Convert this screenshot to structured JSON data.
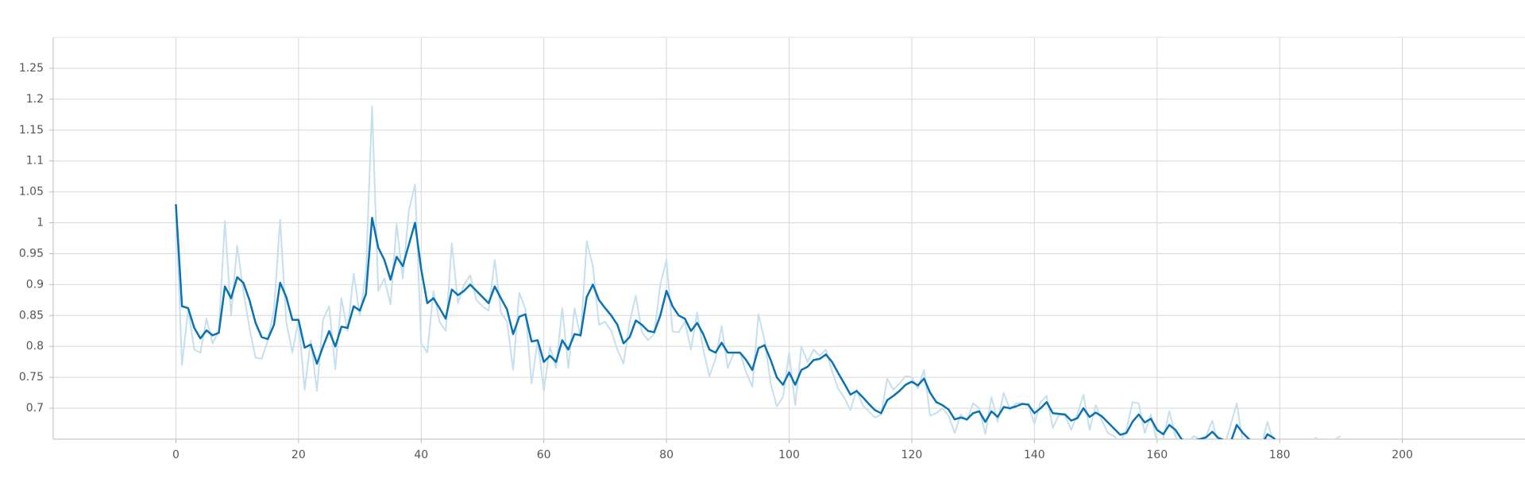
{
  "chart_data": {
    "type": "line",
    "x": [
      0,
      1,
      2,
      3,
      4,
      5,
      6,
      7,
      8,
      9,
      10,
      11,
      12,
      13,
      14,
      15,
      16,
      17,
      18,
      19,
      20,
      21,
      22,
      23,
      24,
      25,
      26,
      27,
      28,
      29,
      30,
      31,
      32,
      33,
      34,
      35,
      36,
      37,
      38,
      39,
      40,
      41,
      42,
      43,
      44,
      45,
      46,
      47,
      48,
      49,
      50,
      51,
      52,
      53,
      54,
      55,
      56,
      57,
      58,
      59,
      60,
      61,
      62,
      63,
      64,
      65,
      66,
      67,
      68,
      69,
      70,
      71,
      72,
      73,
      74,
      75,
      76,
      77,
      78,
      79,
      80,
      81,
      82,
      83,
      84,
      85,
      86,
      87,
      88,
      89,
      90,
      91,
      92,
      93,
      94,
      95,
      96,
      97,
      98,
      99,
      100,
      101,
      102,
      103,
      104,
      105,
      106,
      107,
      108,
      109,
      110,
      111,
      112,
      113,
      114,
      115,
      116,
      117,
      118,
      119,
      120,
      121,
      122,
      123,
      124,
      125,
      126,
      127,
      128,
      129,
      130,
      131,
      132,
      133,
      134,
      135,
      136,
      137,
      138,
      139,
      140,
      141,
      142,
      143,
      144,
      145,
      146,
      147,
      148,
      149,
      150,
      151,
      152,
      153,
      154,
      155,
      156,
      157,
      158,
      159,
      160,
      161,
      162,
      163,
      164,
      165,
      166,
      167,
      168,
      169,
      170,
      171,
      172,
      173,
      174,
      175,
      176,
      177,
      178,
      179,
      180,
      181,
      182,
      183,
      184,
      185,
      186,
      187,
      188,
      189,
      190
    ],
    "series": [
      {
        "color": "#c5dfee",
        "values": [
          1.03,
          0.77,
          0.86,
          0.795,
          0.79,
          0.845,
          0.805,
          0.825,
          1.003,
          0.85,
          0.963,
          0.89,
          0.83,
          0.782,
          0.78,
          0.81,
          0.86,
          1.005,
          0.84,
          0.79,
          0.843,
          0.73,
          0.81,
          0.728,
          0.843,
          0.865,
          0.763,
          0.878,
          0.825,
          0.918,
          0.85,
          0.92,
          1.188,
          0.89,
          0.91,
          0.868,
          0.998,
          0.91,
          1.02,
          1.062,
          0.805,
          0.79,
          0.89,
          0.84,
          0.825,
          0.967,
          0.87,
          0.9,
          0.915,
          0.875,
          0.865,
          0.858,
          0.94,
          0.855,
          0.84,
          0.762,
          0.887,
          0.86,
          0.74,
          0.81,
          0.728,
          0.8,
          0.765,
          0.862,
          0.765,
          0.862,
          0.815,
          0.97,
          0.93,
          0.835,
          0.84,
          0.825,
          0.795,
          0.772,
          0.84,
          0.882,
          0.823,
          0.81,
          0.82,
          0.9,
          0.94,
          0.824,
          0.823,
          0.84,
          0.795,
          0.855,
          0.795,
          0.752,
          0.78,
          0.833,
          0.765,
          0.79,
          0.79,
          0.758,
          0.735,
          0.852,
          0.81,
          0.74,
          0.703,
          0.718,
          0.79,
          0.705,
          0.8,
          0.775,
          0.795,
          0.785,
          0.795,
          0.76,
          0.732,
          0.717,
          0.697,
          0.73,
          0.705,
          0.695,
          0.685,
          0.69,
          0.748,
          0.73,
          0.74,
          0.752,
          0.75,
          0.732,
          0.762,
          0.688,
          0.692,
          0.7,
          0.688,
          0.66,
          0.69,
          0.68,
          0.708,
          0.7,
          0.658,
          0.718,
          0.678,
          0.725,
          0.698,
          0.708,
          0.708,
          0.705,
          0.675,
          0.71,
          0.72,
          0.668,
          0.69,
          0.688,
          0.665,
          0.69,
          0.722,
          0.665,
          0.705,
          0.68,
          0.66,
          0.655,
          0.645,
          0.665,
          0.71,
          0.708,
          0.66,
          0.69,
          0.645,
          0.65,
          0.695,
          0.655,
          0.635,
          0.645,
          0.655,
          0.65,
          0.655,
          0.68,
          0.64,
          0.64,
          0.673,
          0.708,
          0.645,
          0.64,
          0.635,
          0.64,
          0.678,
          0.645,
          0.63,
          0.63,
          0.62,
          0.625,
          0.63,
          0.648,
          0.652,
          0.64,
          0.645,
          0.65,
          0.655
        ]
      },
      {
        "color": "#0a72b0",
        "values": [
          1.03,
          0.865,
          0.862,
          0.83,
          0.813,
          0.826,
          0.818,
          0.822,
          0.897,
          0.878,
          0.912,
          0.903,
          0.875,
          0.838,
          0.815,
          0.812,
          0.835,
          0.903,
          0.88,
          0.843,
          0.843,
          0.798,
          0.803,
          0.772,
          0.8,
          0.825,
          0.8,
          0.832,
          0.83,
          0.865,
          0.858,
          0.885,
          1.008,
          0.96,
          0.94,
          0.908,
          0.945,
          0.93,
          0.965,
          1.0,
          0.925,
          0.87,
          0.878,
          0.862,
          0.845,
          0.892,
          0.883,
          0.89,
          0.9,
          0.89,
          0.88,
          0.87,
          0.897,
          0.878,
          0.86,
          0.82,
          0.848,
          0.852,
          0.808,
          0.81,
          0.775,
          0.785,
          0.775,
          0.81,
          0.795,
          0.82,
          0.818,
          0.88,
          0.9,
          0.875,
          0.862,
          0.85,
          0.835,
          0.805,
          0.815,
          0.842,
          0.835,
          0.825,
          0.823,
          0.85,
          0.89,
          0.865,
          0.85,
          0.845,
          0.825,
          0.838,
          0.82,
          0.795,
          0.79,
          0.806,
          0.79,
          0.79,
          0.79,
          0.778,
          0.762,
          0.797,
          0.802,
          0.778,
          0.75,
          0.738,
          0.758,
          0.738,
          0.762,
          0.767,
          0.778,
          0.78,
          0.787,
          0.775,
          0.757,
          0.74,
          0.722,
          0.728,
          0.718,
          0.707,
          0.697,
          0.692,
          0.713,
          0.72,
          0.728,
          0.738,
          0.743,
          0.737,
          0.748,
          0.725,
          0.71,
          0.705,
          0.698,
          0.682,
          0.685,
          0.682,
          0.692,
          0.695,
          0.678,
          0.695,
          0.686,
          0.702,
          0.7,
          0.703,
          0.707,
          0.706,
          0.692,
          0.7,
          0.71,
          0.692,
          0.691,
          0.69,
          0.68,
          0.684,
          0.7,
          0.686,
          0.693,
          0.687,
          0.677,
          0.667,
          0.657,
          0.66,
          0.678,
          0.69,
          0.677,
          0.683,
          0.665,
          0.658,
          0.673,
          0.665,
          0.65,
          0.645,
          0.648,
          0.65,
          0.653,
          0.662,
          0.652,
          0.648,
          0.645,
          0.673,
          0.66,
          0.65,
          0.643,
          0.64,
          0.658,
          0.652,
          0.64,
          0.638,
          0.634,
          0.632,
          0.633,
          0.636,
          0.639,
          0.639,
          0.64,
          0.642,
          0.644
        ]
      }
    ],
    "xlim": [
      -20,
      220
    ],
    "ylim": [
      0.65,
      1.3
    ],
    "xticks": [
      0,
      20,
      40,
      60,
      80,
      100,
      120,
      140,
      160,
      180,
      200
    ],
    "yticks": [
      0.7,
      0.75,
      0.8,
      0.85,
      0.9,
      0.95,
      1,
      1.05,
      1.1,
      1.15,
      1.2,
      1.25
    ],
    "grid": true
  }
}
